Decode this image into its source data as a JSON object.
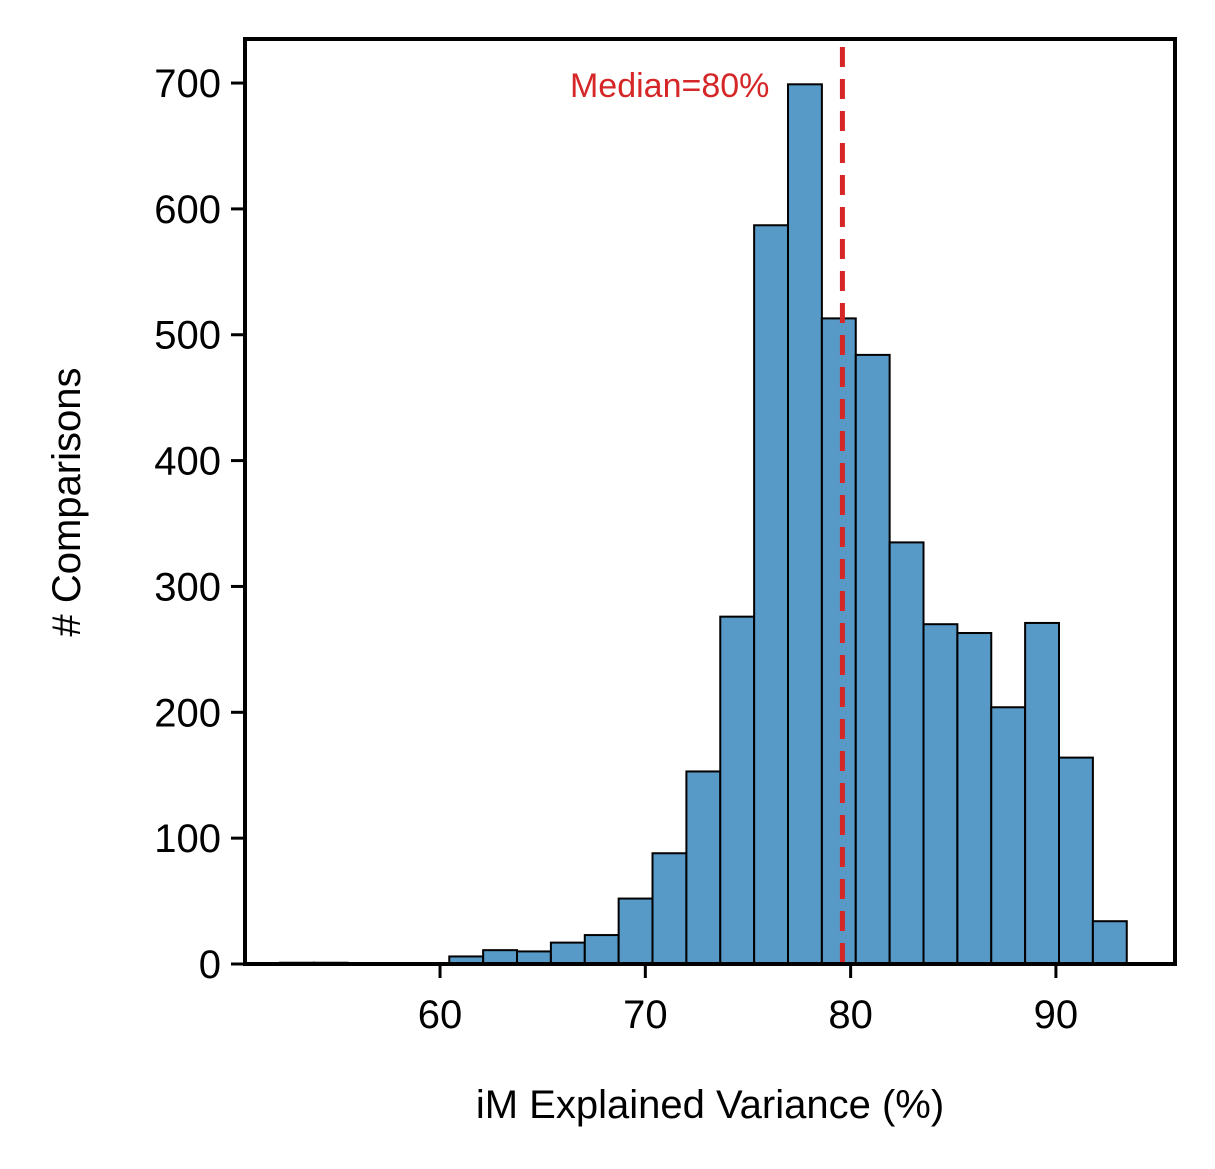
{
  "chart_data": {
    "type": "bar",
    "subtype": "histogram",
    "title": "",
    "xlabel": "iM Explained Variance (%)",
    "ylabel": "# Comparisons",
    "xlim": [
      50.5,
      95.8
    ],
    "ylim": [
      0,
      735
    ],
    "xticks": [
      60,
      70,
      80,
      90
    ],
    "yticks": [
      0,
      100,
      200,
      300,
      400,
      500,
      600,
      700
    ],
    "grid": false,
    "legend": "none",
    "bin_edges": [
      52.2,
      53.85,
      55.5,
      57.15,
      58.8,
      60.45,
      62.1,
      63.75,
      65.4,
      67.05,
      68.7,
      70.35,
      72.0,
      73.65,
      75.3,
      76.95,
      78.6,
      80.25,
      81.9,
      83.55,
      85.2,
      86.85,
      88.5,
      90.15,
      91.8,
      93.45
    ],
    "counts": [
      1,
      1,
      0,
      0,
      0,
      6,
      11,
      10,
      17,
      23,
      52,
      88,
      153,
      276,
      587,
      699,
      513,
      484,
      335,
      270,
      263,
      204,
      271,
      164,
      34
    ],
    "bar_color": "#5799c7",
    "edge_color": "#000000",
    "median": {
      "value": 79.6,
      "label": "Median=80%",
      "color": "#d62728",
      "style": "dashed"
    }
  }
}
